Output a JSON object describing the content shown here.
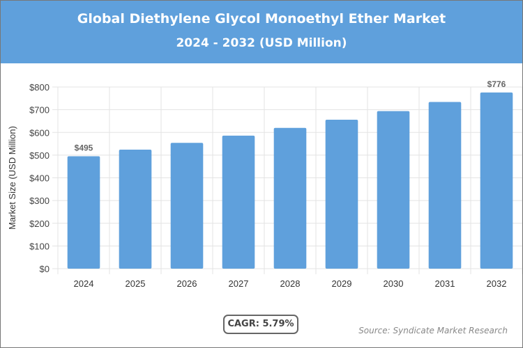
{
  "header": {
    "title": "Global Diethylene Glycol Monoethyl Ether Market",
    "subtitle": "2024 - 2032 (USD Million)",
    "background": "#5fa0dc"
  },
  "chart_data": {
    "type": "bar",
    "categories": [
      "2024",
      "2025",
      "2026",
      "2027",
      "2028",
      "2029",
      "2030",
      "2031",
      "2032"
    ],
    "values": [
      495,
      524,
      554,
      586,
      620,
      656,
      694,
      734,
      776
    ],
    "data_labels": {
      "0": "$495",
      "8": "$776"
    },
    "ylabel": "Market Size (USD Million)",
    "ylim": [
      0,
      800
    ],
    "yticks": [
      0,
      100,
      200,
      300,
      400,
      500,
      600,
      700,
      800
    ],
    "ytick_labels": [
      "$0",
      "$100",
      "$200",
      "$300",
      "$400",
      "$500",
      "$600",
      "$700",
      "$800"
    ],
    "grid": true,
    "bar_color": "#5fa0dc"
  },
  "footer": {
    "cagr": "CAGR: 5.79%",
    "source": "Source: Syndicate Market Research"
  }
}
